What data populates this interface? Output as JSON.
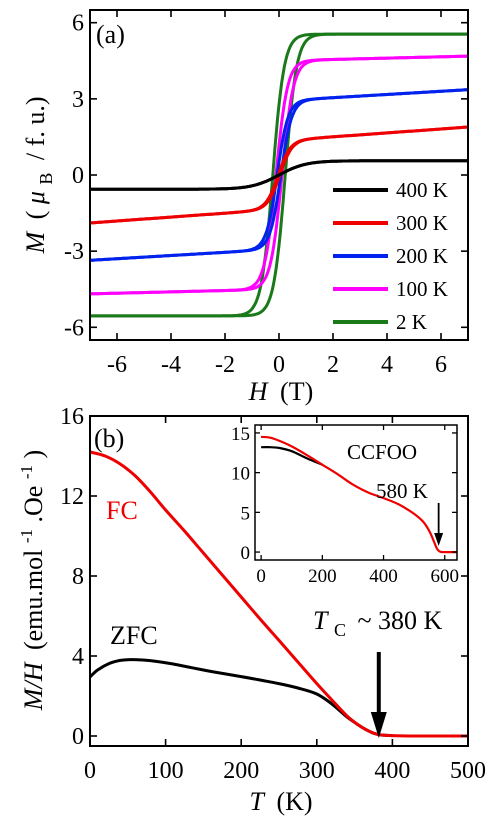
{
  "colors": {
    "black": "#000000",
    "red": "#ee0000",
    "blue": "#0022ee",
    "magenta": "#ff00ff",
    "green": "#1a7a1a"
  },
  "chart_data": [
    {
      "type": "line",
      "panel_label": "(a)",
      "xlabel_var": "H",
      "xlabel_unit": "(T)",
      "ylabel_var": "M",
      "ylabel_open": "(",
      "ylabel_mu": "μ",
      "ylabel_sub": "B",
      "ylabel_rest": "/ f. u.)",
      "xlim": [
        -7,
        7
      ],
      "ylim": [
        -6.5,
        6.5
      ],
      "xticks": [
        "-6",
        "-4",
        "-2",
        "0",
        "2",
        "4",
        "6"
      ],
      "yticks": [
        "-6",
        "-3",
        "0",
        "3",
        "6"
      ],
      "legend_position": "bottom-right",
      "series": [
        {
          "name": "400 K",
          "color": "black",
          "ms": 0.56,
          "chi": 0.0001,
          "hc": 0.0,
          "h0": 1.0
        },
        {
          "name": "300 K",
          "color": "red",
          "ms": 1.35,
          "chi": 0.077,
          "hc": 0.03,
          "h0": 0.45
        },
        {
          "name": "200 K",
          "color": "blue",
          "ms": 2.92,
          "chi": 0.063,
          "hc": 0.07,
          "h0": 0.4
        },
        {
          "name": "100 K",
          "color": "magenta",
          "ms": 4.5,
          "chi": 0.026,
          "hc": 0.11,
          "h0": 0.42
        },
        {
          "name": "2 K",
          "color": "green",
          "ms": 5.55,
          "chi": 0.0,
          "hc": 0.23,
          "h0": 0.42
        }
      ]
    },
    {
      "type": "line",
      "panel_label": "(b)",
      "xlabel_var": "T",
      "xlabel_unit": "(K)",
      "ylabel_var": "M/H",
      "ylabel_rest": "(emu.mol",
      "ylabel_sup1": "-1",
      "ylabel_mid": ".Oe",
      "ylabel_sup2": "-1",
      "ylabel_close": ")",
      "xlim": [
        0,
        500
      ],
      "ylim": [
        -0.5,
        16
      ],
      "xticks": [
        "0",
        "100",
        "200",
        "300",
        "400",
        "500"
      ],
      "yticks": [
        "0",
        "4",
        "8",
        "12",
        "16"
      ],
      "labels": {
        "fc": "FC",
        "zfc": "ZFC"
      },
      "annotation": {
        "var": "T",
        "sub": "C",
        "text": "~ 380 K",
        "x": 382
      },
      "series": [
        {
          "name": "FC",
          "color": "red",
          "x": [
            0,
            20,
            40,
            60,
            80,
            100,
            125,
            150,
            175,
            200,
            225,
            250,
            275,
            300,
            320,
            340,
            355,
            365,
            375,
            385,
            400,
            430,
            460,
            500
          ],
          "y": [
            14.2,
            14.0,
            13.6,
            13.0,
            12.2,
            11.3,
            10.25,
            9.15,
            8.05,
            6.95,
            5.85,
            4.78,
            3.7,
            2.62,
            1.8,
            1.0,
            0.55,
            0.32,
            0.14,
            0.05,
            0.02,
            0.0,
            0.0,
            0.0
          ]
        },
        {
          "name": "ZFC",
          "color": "black",
          "x": [
            0,
            10,
            25,
            40,
            55,
            70,
            90,
            110,
            130,
            150,
            175,
            200,
            225,
            250,
            275,
            300,
            320,
            340,
            355,
            365,
            375,
            385,
            400
          ],
          "y": [
            2.95,
            3.3,
            3.62,
            3.78,
            3.82,
            3.8,
            3.72,
            3.6,
            3.45,
            3.3,
            3.13,
            2.97,
            2.8,
            2.62,
            2.4,
            2.1,
            1.6,
            0.95,
            0.55,
            0.32,
            0.14,
            0.05,
            0.02
          ]
        }
      ],
      "inset": {
        "sample_label": "CCFOO",
        "annotation": "580 K",
        "annotation_x": 580,
        "xlim": [
          -20,
          640
        ],
        "ylim": [
          -1,
          16
        ],
        "xticks": [
          "0",
          "200",
          "400",
          "600"
        ],
        "yticks": [
          "0",
          "5",
          "10",
          "15"
        ],
        "series": [
          {
            "name": "FC",
            "color": "red",
            "x": [
              0,
              30,
              60,
              100,
              150,
              200,
              250,
              300,
              350,
              400,
              450,
              500,
              530,
              550,
              565,
              575,
              585,
              600,
              640
            ],
            "y": [
              14.5,
              14.4,
              14.0,
              13.3,
              12.2,
              11.0,
              9.8,
              8.5,
              7.5,
              6.8,
              6.0,
              4.8,
              3.8,
              2.6,
              1.3,
              0.4,
              0.05,
              0.0,
              0.0
            ]
          },
          {
            "name": "ZFC",
            "color": "black",
            "x": [
              0,
              30,
              60,
              100,
              150,
              200
            ],
            "y": [
              13.2,
              13.2,
              13.1,
              12.7,
              11.8,
              11.0
            ]
          }
        ]
      }
    }
  ]
}
